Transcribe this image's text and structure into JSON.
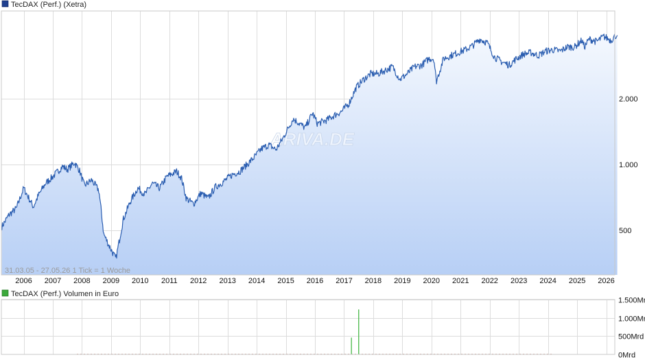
{
  "colors": {
    "price_line": "#2a5db0",
    "price_legend": "#1f3f8f",
    "volume_bar": "#48b848",
    "volume_bar_down": "#d24a3a",
    "volume_legend": "#3ba93b",
    "area_top": "#f4f8fe",
    "area_bottom": "#b7cff5",
    "grid": "#dcdcdc",
    "frame": "#c8c8c8"
  },
  "price_panel": {
    "legend": "TecDAX (Perf.) (Xetra)",
    "info": "31.03.05 - 27.05.26   1 Tick = 1 Woche",
    "watermark": "ARIVA.DE"
  },
  "volume_panel": {
    "legend": "TecDAX (Perf.) Volumen in Euro"
  },
  "chart_data": [
    {
      "type": "area",
      "title": "TecDAX (Perf.) (Xetra)",
      "date_range": [
        "31.03.05",
        "27.05.26"
      ],
      "y_scale": "log",
      "ylim": [
        320,
        5000
      ],
      "y_ticks": [
        {
          "value": 500,
          "label": "500"
        },
        {
          "value": 1000,
          "label": "1.000"
        },
        {
          "value": 2000,
          "label": "2.000"
        }
      ],
      "x_ticks": [
        "2006",
        "2007",
        "2008",
        "2009",
        "2010",
        "2011",
        "2012",
        "2013",
        "2014",
        "2015",
        "2016",
        "2017",
        "2018",
        "2019",
        "2020",
        "2021",
        "2022",
        "2023",
        "2024",
        "2025",
        "2026"
      ],
      "series": [
        {
          "x": [
            "2005-04",
            "2005-07",
            "2005-10",
            "2006-01",
            "2006-05",
            "2006-07",
            "2006-10",
            "2007-01",
            "2007-05",
            "2007-07",
            "2007-10",
            "2007-12",
            "2008-02",
            "2008-05",
            "2008-08",
            "2008-10",
            "2008-12",
            "2009-03",
            "2009-06",
            "2009-09",
            "2009-12",
            "2010-03",
            "2010-06",
            "2010-09",
            "2010-12",
            "2011-04",
            "2011-06",
            "2011-08",
            "2011-11",
            "2012-02",
            "2012-05",
            "2012-08",
            "2012-11",
            "2013-03",
            "2013-06",
            "2013-09",
            "2013-12",
            "2014-03",
            "2014-06",
            "2014-09",
            "2014-12",
            "2015-04",
            "2015-06",
            "2015-09",
            "2015-12",
            "2016-02",
            "2016-06",
            "2016-09",
            "2016-12",
            "2017-03",
            "2017-06",
            "2017-09",
            "2017-12",
            "2018-03",
            "2018-06",
            "2018-09",
            "2018-12",
            "2019-03",
            "2019-06",
            "2019-09",
            "2019-12",
            "2020-02",
            "2020-03",
            "2020-06",
            "2020-09",
            "2020-12",
            "2021-03",
            "2021-06",
            "2021-09",
            "2021-12",
            "2022-03",
            "2022-06",
            "2022-09",
            "2022-12",
            "2023-03",
            "2023-06",
            "2023-09",
            "2023-12",
            "2024-03",
            "2024-06",
            "2024-09",
            "2024-12",
            "2025-03",
            "2025-04",
            "2025-06",
            "2025-09",
            "2025-12",
            "2026-03",
            "2026-05"
          ],
          "y": [
            520,
            590,
            630,
            780,
            640,
            720,
            820,
            880,
            980,
            950,
            1020,
            940,
            800,
            850,
            760,
            480,
            430,
            370,
            560,
            680,
            780,
            730,
            820,
            780,
            880,
            930,
            870,
            700,
            660,
            740,
            700,
            790,
            830,
            900,
            930,
            1000,
            1080,
            1180,
            1230,
            1170,
            1330,
            1620,
            1560,
            1470,
            1720,
            1540,
            1600,
            1680,
            1750,
            1900,
            2250,
            2450,
            2600,
            2600,
            2700,
            2800,
            2450,
            2600,
            2800,
            2850,
            3050,
            3050,
            2400,
            3050,
            3150,
            3250,
            3350,
            3500,
            3750,
            3600,
            3100,
            2950,
            2850,
            3050,
            3200,
            3250,
            3150,
            3300,
            3350,
            3300,
            3450,
            3450,
            3700,
            3450,
            3750,
            3650,
            3850,
            3700,
            3900
          ]
        }
      ]
    },
    {
      "type": "bar",
      "title": "TecDAX (Perf.) Volumen in Euro",
      "ylim": [
        0,
        1500
      ],
      "y_ticks": [
        {
          "value": 0,
          "label": "0Mrd"
        },
        {
          "value": 500,
          "label": "500Mrd"
        },
        {
          "value": 1000,
          "label": "1.000Mrd"
        },
        {
          "value": 1500,
          "label": "1.500Mrd"
        }
      ],
      "series": [
        {
          "x": [
            "2017-04",
            "2017-07"
          ],
          "values": [
            460,
            1230
          ]
        }
      ]
    }
  ]
}
